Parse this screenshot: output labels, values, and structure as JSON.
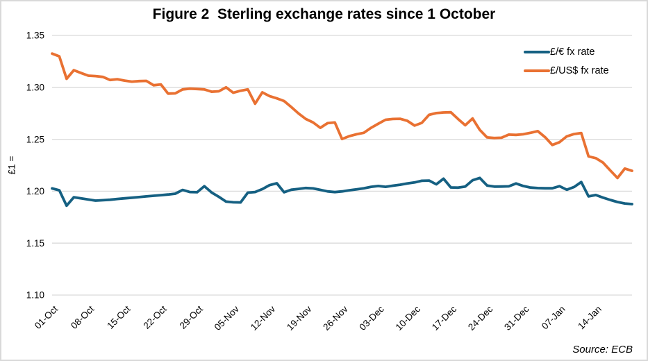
{
  "chart_data": {
    "type": "line",
    "title": "Figure 2  Sterling exchange rates since 1 October",
    "y_axis_title": "£1 =",
    "source": "Source: ECB",
    "ylim": [
      1.1,
      1.35
    ],
    "y_ticks": [
      1.1,
      1.15,
      1.2,
      1.25,
      1.3,
      1.35
    ],
    "y_tick_format_decimals": 2,
    "x_tick_labels": [
      "01-Oct",
      "08-Oct",
      "15-Oct",
      "22-Oct",
      "29-Oct",
      "05-Nov",
      "12-Nov",
      "19-Nov",
      "26-Nov",
      "03-Dec",
      "10-Dec",
      "17-Dec",
      "24-Dec",
      "31-Dec",
      "07-Jan",
      "14-Jan"
    ],
    "x_tick_every": 5,
    "grid": "horizontal-only",
    "grid_color": "#d9d9d9",
    "background": "#ffffff",
    "legend_position": "top-right",
    "series": [
      {
        "id": "eur",
        "name": "£/€ fx rate",
        "color": "#156082",
        "values": [
          1.2027,
          1.2009,
          1.186,
          1.1942,
          1.1931,
          1.192,
          1.1909,
          1.1913,
          1.1918,
          1.1925,
          1.1931,
          1.1937,
          1.1943,
          1.195,
          1.1956,
          1.1962,
          1.1968,
          1.1976,
          1.2012,
          1.1992,
          1.199,
          1.2048,
          1.1988,
          1.1946,
          1.19,
          1.1893,
          1.1892,
          1.1986,
          1.1992,
          1.202,
          1.2058,
          1.2076,
          1.199,
          1.2014,
          1.2022,
          1.2031,
          1.2027,
          1.2013,
          1.1998,
          1.1991,
          1.1998,
          1.2009,
          1.2018,
          1.2028,
          1.2042,
          1.205,
          1.2042,
          1.2053,
          1.2062,
          1.2075,
          1.2084,
          1.21,
          1.2102,
          1.2066,
          1.212,
          1.2036,
          1.2034,
          1.2045,
          1.2105,
          1.2128,
          1.2055,
          1.2044,
          1.2045,
          1.2047,
          1.2074,
          1.205,
          1.2035,
          1.203,
          1.2028,
          1.2028,
          1.2048,
          1.2014,
          1.204,
          1.2088,
          1.195,
          1.1963,
          1.1938,
          1.1916,
          1.1896,
          1.1882,
          1.1876
        ]
      },
      {
        "id": "usd",
        "name": "£/US$ fx rate",
        "color": "#E97132",
        "values": [
          1.3325,
          1.3298,
          1.3082,
          1.3165,
          1.3138,
          1.3112,
          1.3108,
          1.31,
          1.3071,
          1.3078,
          1.3065,
          1.3055,
          1.306,
          1.3062,
          1.302,
          1.3028,
          1.294,
          1.2942,
          1.298,
          1.2987,
          1.2984,
          1.298,
          1.2958,
          1.2962,
          1.3,
          1.2948,
          1.2967,
          1.298,
          1.2842,
          1.2952,
          1.2916,
          1.2894,
          1.2868,
          1.281,
          1.2748,
          1.2695,
          1.2662,
          1.261,
          1.2655,
          1.2662,
          1.2502,
          1.253,
          1.2548,
          1.2562,
          1.261,
          1.265,
          1.2688,
          1.2695,
          1.2697,
          1.2678,
          1.2632,
          1.2658,
          1.2735,
          1.2752,
          1.2758,
          1.276,
          1.2695,
          1.2635,
          1.27,
          1.259,
          1.2518,
          1.2512,
          1.2515,
          1.2545,
          1.2542,
          1.2548,
          1.2562,
          1.2578,
          1.252,
          1.2445,
          1.2472,
          1.2528,
          1.255,
          1.256,
          1.2335,
          1.2318,
          1.2275,
          1.22,
          1.2127,
          1.2218,
          1.2196
        ]
      }
    ]
  }
}
